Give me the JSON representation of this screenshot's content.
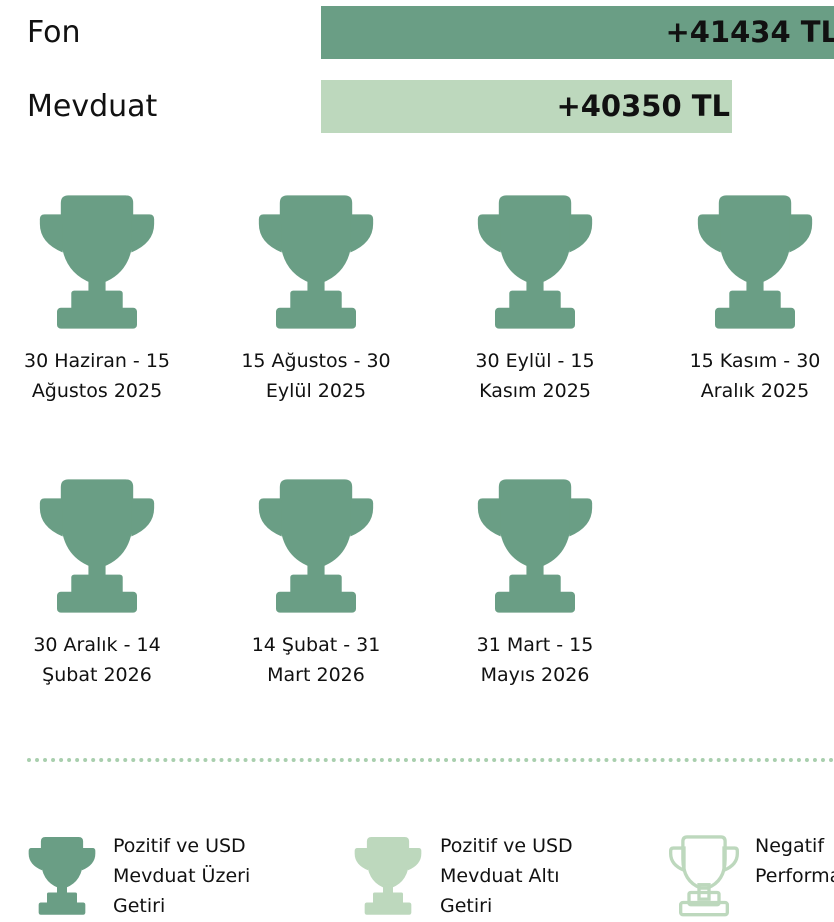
{
  "bars": [
    {
      "label": "Fon",
      "amount": "+41434 TL"
    },
    {
      "label": "Mevduat",
      "amount": "+40350 TL"
    }
  ],
  "periods": [
    [
      "30 Haziran - 15",
      "Ağustos 2025"
    ],
    [
      "15 Ağustos - 30",
      "Eylül 2025"
    ],
    [
      "30 Eylül - 15",
      "Kasım 2025"
    ],
    [
      "15 Kasım - 30",
      "Aralık 2025"
    ],
    [
      "30 Aralık - 14",
      "Şubat 2026"
    ],
    [
      "14 Şubat - 31",
      "Mart 2026"
    ],
    [
      "31 Mart - 15",
      "Mayıs 2026"
    ]
  ],
  "legend": [
    [
      "Pozitif ve USD",
      "Mevduat Üzeri",
      "Getiri"
    ],
    [
      "Pozitif ve USD",
      "Mevduat Altı",
      "Getiri"
    ],
    [
      "Negatif",
      "Performans"
    ]
  ]
}
